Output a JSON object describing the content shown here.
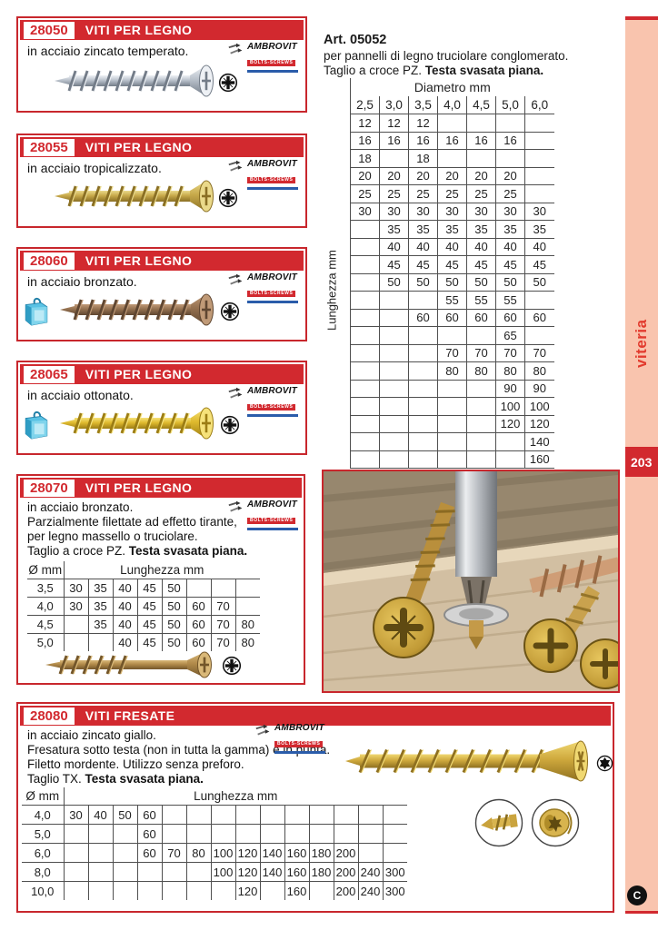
{
  "page": {
    "number": "203",
    "side_tab": "viteria",
    "continue_glyph": "C"
  },
  "colors": {
    "accent_red": "#d2292f",
    "strip_pink": "#f9c4ae",
    "tab_text_red": "#e23b2e"
  },
  "brand": {
    "name": "AMBROVIT",
    "badge": "BOLTS-SCREWS"
  },
  "products": [
    {
      "code": "28050",
      "title": "VITI PER LEGNO",
      "lines": [
        "in acciaio zincato temperato."
      ]
    },
    {
      "code": "28055",
      "title": "VITI PER LEGNO",
      "lines": [
        "in acciaio tropicalizzato."
      ]
    },
    {
      "code": "28060",
      "title": "VITI PER LEGNO",
      "lines": [
        "in acciaio bronzato."
      ]
    },
    {
      "code": "28065",
      "title": "VITI PER LEGNO",
      "lines": [
        "in acciaio ottonato."
      ]
    },
    {
      "code": "28070",
      "title": "VITI PER LEGNO",
      "lines": [
        "in acciaio bronzato.",
        "Parzialmente filettate ad effetto tirante,",
        "per legno massello o truciolare."
      ],
      "tagline_normal": "Taglio a croce PZ. ",
      "tagline_bold": "Testa svasata piana.",
      "table": {
        "corner": "Ø mm",
        "span_header": "Lunghezza mm",
        "cols": 8,
        "rows": [
          {
            "label": "3,5",
            "values": [
              "30",
              "35",
              "40",
              "45",
              "50",
              "",
              "",
              ""
            ]
          },
          {
            "label": "4,0",
            "values": [
              "30",
              "35",
              "40",
              "45",
              "50",
              "60",
              "70",
              ""
            ]
          },
          {
            "label": "4,5",
            "values": [
              "",
              "35",
              "40",
              "45",
              "50",
              "60",
              "70",
              "80"
            ]
          },
          {
            "label": "5,0",
            "values": [
              "",
              "",
              "40",
              "45",
              "50",
              "60",
              "70",
              "80"
            ]
          }
        ]
      }
    },
    {
      "code": "28080",
      "title": "VITI FRESATE",
      "lines": [
        "in acciaio zincato giallo.",
        "Fresatura sotto testa (non in tutta la gamma) e in punta.",
        "Filetto mordente. Utilizzo senza preforo."
      ],
      "tagline_normal": "Taglio TX. ",
      "tagline_bold": "Testa svasata piana.",
      "table": {
        "corner": "Ø mm",
        "span_header": "Lunghezza mm",
        "cols": 14,
        "rows": [
          {
            "label": "4,0",
            "values": [
              "30",
              "40",
              "50",
              "60",
              "",
              "",
              "",
              "",
              "",
              "",
              "",
              "",
              "",
              ""
            ]
          },
          {
            "label": "5,0",
            "values": [
              "",
              "",
              "",
              "60",
              "",
              "",
              "",
              "",
              "",
              "",
              "",
              "",
              "",
              ""
            ]
          },
          {
            "label": "6,0",
            "values": [
              "",
              "",
              "",
              "60",
              "70",
              "80",
              "100",
              "120",
              "140",
              "160",
              "180",
              "200",
              "",
              ""
            ]
          },
          {
            "label": "8,0",
            "values": [
              "",
              "",
              "",
              "",
              "",
              "",
              "100",
              "120",
              "140",
              "160",
              "180",
              "200",
              "240",
              "300"
            ]
          },
          {
            "label": "10,0",
            "values": [
              "",
              "",
              "",
              "",
              "",
              "",
              "",
              "120",
              "",
              "160",
              "",
              "200",
              "240",
              "300"
            ]
          }
        ]
      }
    }
  ],
  "art_block": {
    "art": "Art. 05052",
    "line1": "per pannelli di legno truciolare conglomerato.",
    "tagline_normal": "Taglio a croce PZ. ",
    "tagline_bold": "Testa svasata piana.",
    "table": {
      "span_header": "Diametro mm",
      "row_axis_label": "Lunghezza mm",
      "cols": 7,
      "col_labels": [
        "2,5",
        "3,0",
        "3,5",
        "4,0",
        "4,5",
        "5,0",
        "6,0"
      ],
      "rows": [
        {
          "values": [
            "12",
            "12",
            "12",
            "",
            "",
            "",
            ""
          ]
        },
        {
          "values": [
            "16",
            "16",
            "16",
            "16",
            "16",
            "16",
            ""
          ]
        },
        {
          "values": [
            "18",
            "",
            "18",
            "",
            "",
            "",
            ""
          ]
        },
        {
          "values": [
            "20",
            "20",
            "20",
            "20",
            "20",
            "20",
            ""
          ]
        },
        {
          "values": [
            "25",
            "25",
            "25",
            "25",
            "25",
            "25",
            ""
          ]
        },
        {
          "values": [
            "30",
            "30",
            "30",
            "30",
            "30",
            "30",
            "30"
          ]
        },
        {
          "values": [
            "",
            "35",
            "35",
            "35",
            "35",
            "35",
            "35"
          ]
        },
        {
          "values": [
            "",
            "40",
            "40",
            "40",
            "40",
            "40",
            "40"
          ]
        },
        {
          "values": [
            "",
            "45",
            "45",
            "45",
            "45",
            "45",
            "45"
          ]
        },
        {
          "values": [
            "",
            "50",
            "50",
            "50",
            "50",
            "50",
            "50"
          ]
        },
        {
          "values": [
            "",
            "",
            "",
            "55",
            "55",
            "55",
            ""
          ]
        },
        {
          "values": [
            "",
            "",
            "60",
            "60",
            "60",
            "60",
            "60"
          ]
        },
        {
          "values": [
            "",
            "",
            "",
            "",
            "",
            "65",
            ""
          ]
        },
        {
          "values": [
            "",
            "",
            "",
            "70",
            "70",
            "70",
            "70"
          ]
        },
        {
          "values": [
            "",
            "",
            "",
            "80",
            "80",
            "80",
            "80"
          ]
        },
        {
          "values": [
            "",
            "",
            "",
            "",
            "",
            "90",
            "90"
          ]
        },
        {
          "values": [
            "",
            "",
            "",
            "",
            "",
            "100",
            "100"
          ]
        },
        {
          "values": [
            "",
            "",
            "",
            "",
            "",
            "120",
            "120"
          ]
        },
        {
          "values": [
            "",
            "",
            "",
            "",
            "",
            "",
            "140"
          ]
        },
        {
          "values": [
            "",
            "",
            "",
            "",
            "",
            "",
            "160"
          ]
        }
      ]
    }
  }
}
